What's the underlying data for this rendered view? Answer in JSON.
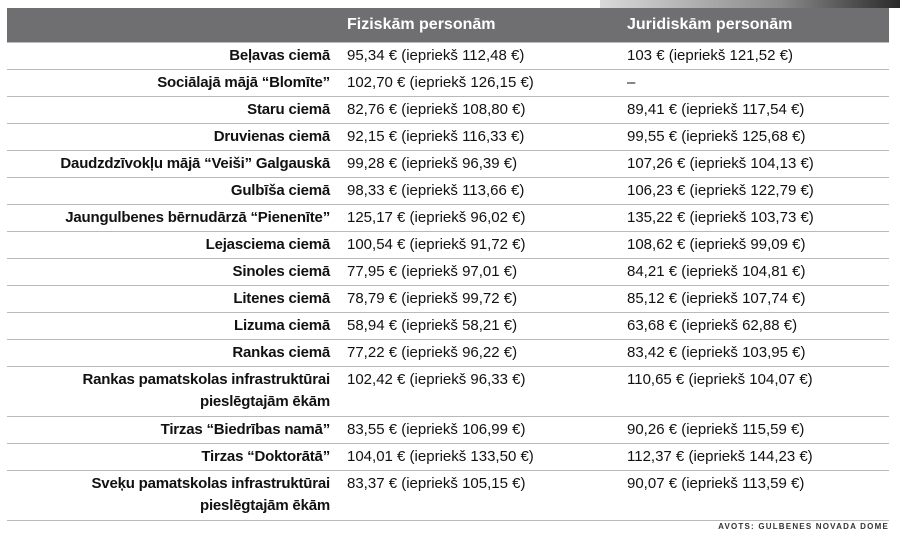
{
  "header": {
    "col0": "",
    "col1": "Fiziskām personām",
    "col2": "Juridiskām personām"
  },
  "rows": [
    {
      "place": "Beļavas ciemā",
      "private": "95,34 € (iepriekš 112,48 €)",
      "legal": "103 € (iepriekš 121,52 €)"
    },
    {
      "place": "Sociālajā mājā “Blomīte”",
      "private": "102,70 € (iepriekš 126,15 €)",
      "legal": "–"
    },
    {
      "place": "Staru ciemā",
      "private": "82,76 € (iepriekš 108,80 €)",
      "legal": "89,41 € (iepriekš 117,54 €)"
    },
    {
      "place": "Druvienas ciemā",
      "private": "92,15 € (iepriekš 116,33 €)",
      "legal": "99,55 € (iepriekš 125,68 €)"
    },
    {
      "place": "Daudzdzīvokļu mājā “Veiši” Galgauskā",
      "private": "99,28 € (iepriekš 96,39 €)",
      "legal": "107,26 € (iepriekš 104,13 €)"
    },
    {
      "place": "Gulbīša ciemā",
      "private": "98,33 € (iepriekš 113,66 €)",
      "legal": "106,23 € (iepriekš 122,79 €)"
    },
    {
      "place": "Jaungulbenes bērnudārzā “Pienenīte”",
      "private": "125,17 € (iepriekš 96,02 €)",
      "legal": "135,22 € (iepriekš 103,73 €)"
    },
    {
      "place": "Lejasciema ciemā",
      "private": "100,54 € (iepriekš 91,72 €)",
      "legal": "108,62 € (iepriekš 99,09 €)"
    },
    {
      "place": "Sinoles ciemā",
      "private": "77,95 € (iepriekš 97,01 €)",
      "legal": "84,21 € (iepriekš 104,81 €)"
    },
    {
      "place": "Litenes ciemā",
      "private": "78,79 € (iepriekš 99,72 €)",
      "legal": "85,12 € (iepriekš 107,74 €)"
    },
    {
      "place": "Lizuma ciemā",
      "private": "58,94 € (iepriekš 58,21 €)",
      "legal": "63,68 € (iepriekš 62,88 €)"
    },
    {
      "place": "Rankas ciemā",
      "private": "77,22 € (iepriekš 96,22 €)",
      "legal": "83,42 € (iepriekš 103,95 €)"
    },
    {
      "place": "Rankas pamatskolas infrastruktūrai pieslēgtajām ēkām",
      "private": "102,42 € (iepriekš 96,33 €)",
      "legal": "110,65 € (iepriekš 104,07 €)"
    },
    {
      "place": "Tirzas “Biedrības namā”",
      "private": "83,55 € (iepriekš 106,99 €)",
      "legal": "90,26 € (iepriekš 115,59 €)"
    },
    {
      "place": "Tirzas “Doktorātā”",
      "private": "104,01 € (iepriekš 133,50 €)",
      "legal": "112,37 € (iepriekš 144,23 €)"
    },
    {
      "place": "Sveķu pamatskolas infrastruktūrai pieslēgtajām ēkām",
      "private": "83,37 € (iepriekš 105,15 €)",
      "legal": "90,07 € (iepriekš 113,59 €)"
    }
  ],
  "footer": "AVOTS: GULBENES NOVADA DOME"
}
